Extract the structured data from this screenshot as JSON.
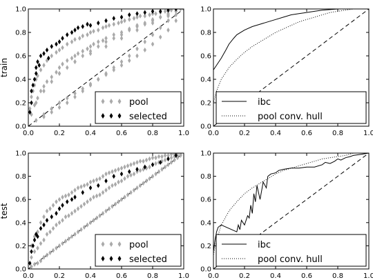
{
  "colors": {
    "pool": "#aaaaaa",
    "selected": "#000000",
    "line": "#000000"
  },
  "chart_data": [
    {
      "id": "train-scatter",
      "type": "scatter",
      "ylabel": "train",
      "xlim": [
        0,
        1
      ],
      "ylim": [
        0,
        1
      ],
      "xticks": [
        "0.0",
        "0.2",
        "0.4",
        "0.6",
        "0.8",
        "1.0"
      ],
      "yticks": [
        "0.0",
        "0.2",
        "0.4",
        "0.6",
        "0.8",
        "1.0"
      ],
      "grid": false,
      "legend": {
        "position": "bottom-right",
        "entries": [
          "pool",
          "selected"
        ]
      },
      "diagonal": true,
      "series": [
        {
          "name": "pool",
          "marker": "diamond",
          "color": "#aaaaaa",
          "x": [
            0.01,
            0.02,
            0.03,
            0.04,
            0.05,
            0.06,
            0.08,
            0.1,
            0.12,
            0.15,
            0.18,
            0.2,
            0.22,
            0.25,
            0.28,
            0.3,
            0.33,
            0.35,
            0.38,
            0.4,
            0.42,
            0.45,
            0.48,
            0.5,
            0.52,
            0.55,
            0.58,
            0.6,
            0.62,
            0.65,
            0.68,
            0.7,
            0.72,
            0.75,
            0.78,
            0.8,
            0.82,
            0.85,
            0.88,
            0.9,
            0.92,
            0.95,
            0.98,
            1.0,
            0.02,
            0.04,
            0.06,
            0.08,
            0.1,
            0.12,
            0.15,
            0.18,
            0.2,
            0.22,
            0.25,
            0.28,
            0.3,
            0.32,
            0.35,
            0.38,
            0.4,
            0.42,
            0.45,
            0.48,
            0.5,
            0.55,
            0.6,
            0.65,
            0.7,
            0.75,
            0.8,
            0.85,
            0.9,
            0.95,
            0.05,
            0.1,
            0.15,
            0.2,
            0.25,
            0.3,
            0.35,
            0.4,
            0.45,
            0.5,
            0.55,
            0.6,
            0.65,
            0.7,
            0.75,
            0.8,
            0.85,
            0.9,
            0.95,
            0.05,
            0.1,
            0.15,
            0.2,
            0.25,
            0.3,
            0.35,
            0.4,
            0.45,
            0.5,
            0.55,
            0.6,
            0.65,
            0.7,
            0.75,
            0.8,
            0.85,
            0.9,
            0.95,
            0.1,
            0.15,
            0.2,
            0.25,
            0.3,
            0.35,
            0.4,
            0.45,
            0.5,
            0.55,
            0.6,
            0.65,
            0.7,
            0.75,
            0.8,
            0.85,
            0.9,
            0.95,
            0.2,
            0.3,
            0.4,
            0.5,
            0.6,
            0.7,
            0.8,
            0.9
          ],
          "y": [
            0.15,
            0.25,
            0.3,
            0.35,
            0.4,
            0.43,
            0.48,
            0.52,
            0.56,
            0.6,
            0.63,
            0.65,
            0.67,
            0.7,
            0.72,
            0.74,
            0.75,
            0.77,
            0.78,
            0.8,
            0.81,
            0.82,
            0.84,
            0.85,
            0.86,
            0.87,
            0.88,
            0.89,
            0.9,
            0.91,
            0.92,
            0.93,
            0.94,
            0.94,
            0.95,
            0.96,
            0.96,
            0.97,
            0.98,
            0.98,
            0.99,
            0.99,
            1.0,
            1.0,
            0.1,
            0.18,
            0.24,
            0.3,
            0.34,
            0.38,
            0.42,
            0.46,
            0.5,
            0.53,
            0.56,
            0.58,
            0.6,
            0.62,
            0.64,
            0.66,
            0.68,
            0.7,
            0.72,
            0.73,
            0.75,
            0.78,
            0.8,
            0.83,
            0.86,
            0.88,
            0.91,
            0.93,
            0.96,
            0.98,
            0.2,
            0.3,
            0.38,
            0.45,
            0.5,
            0.55,
            0.6,
            0.64,
            0.68,
            0.72,
            0.75,
            0.78,
            0.82,
            0.85,
            0.87,
            0.9,
            0.93,
            0.95,
            0.98,
            0.05,
            0.1,
            0.15,
            0.2,
            0.24,
            0.28,
            0.32,
            0.36,
            0.4,
            0.44,
            0.48,
            0.52,
            0.56,
            0.6,
            0.65,
            0.7,
            0.76,
            0.82,
            0.9,
            0.08,
            0.12,
            0.16,
            0.2,
            0.25,
            0.3,
            0.35,
            0.4,
            0.45,
            0.5,
            0.55,
            0.6,
            0.66,
            0.72,
            0.78,
            0.84,
            0.9,
            0.95,
            0.45,
            0.55,
            0.62,
            0.68,
            0.75,
            0.82,
            0.88,
            0.94
          ]
        },
        {
          "name": "selected",
          "marker": "diamond",
          "color": "#000000",
          "x": [
            0.01,
            0.02,
            0.02,
            0.03,
            0.04,
            0.05,
            0.05,
            0.06,
            0.07,
            0.08,
            0.1,
            0.12,
            0.13,
            0.15,
            0.18,
            0.2,
            0.22,
            0.25,
            0.28,
            0.3,
            0.32,
            0.35,
            0.38,
            0.4,
            0.45,
            0.5,
            0.55,
            0.6,
            0.65,
            0.7,
            0.75,
            0.8,
            0.85,
            0.9,
            0.95
          ],
          "y": [
            0.12,
            0.2,
            0.3,
            0.35,
            0.4,
            0.45,
            0.5,
            0.55,
            0.52,
            0.6,
            0.62,
            0.65,
            0.58,
            0.68,
            0.7,
            0.72,
            0.75,
            0.78,
            0.8,
            0.82,
            0.84,
            0.85,
            0.87,
            0.86,
            0.88,
            0.9,
            0.92,
            0.93,
            0.95,
            0.96,
            0.97,
            0.98,
            0.98,
            0.99,
            1.0
          ]
        }
      ]
    },
    {
      "id": "train-roc",
      "type": "line",
      "xlim": [
        0,
        1
      ],
      "ylim": [
        0,
        1
      ],
      "xticks": [
        "0.0",
        "0.2",
        "0.4",
        "0.6",
        "0.8",
        "1.0"
      ],
      "yticks": [
        "0.0",
        "0.2",
        "0.4",
        "0.6",
        "0.8",
        "1.0"
      ],
      "grid": false,
      "legend": {
        "position": "bottom-right",
        "entries": [
          "ibc",
          "pool conv. hull"
        ]
      },
      "diagonal": true,
      "series": [
        {
          "name": "ibc",
          "style": "solid",
          "x": [
            0,
            0.0,
            0.02,
            0.05,
            0.08,
            0.1,
            0.13,
            0.15,
            0.2,
            0.25,
            0.3,
            0.35,
            0.4,
            0.45,
            0.5,
            0.55,
            0.6,
            0.65,
            0.7,
            0.8,
            0.9,
            1.0
          ],
          "y": [
            0,
            0.48,
            0.52,
            0.58,
            0.65,
            0.7,
            0.75,
            0.78,
            0.82,
            0.85,
            0.87,
            0.89,
            0.91,
            0.93,
            0.95,
            0.96,
            0.97,
            0.98,
            0.99,
            1.0,
            1.0,
            1.0
          ]
        },
        {
          "name": "pool conv. hull",
          "style": "dotted",
          "x": [
            0,
            0.0,
            0.02,
            0.05,
            0.1,
            0.15,
            0.2,
            0.25,
            0.3,
            0.35,
            0.4,
            0.45,
            0.5,
            0.55,
            0.6,
            0.65,
            0.7,
            0.75,
            0.8,
            0.85,
            0.9,
            1.0
          ],
          "y": [
            0,
            0.2,
            0.3,
            0.4,
            0.5,
            0.57,
            0.63,
            0.68,
            0.72,
            0.76,
            0.8,
            0.83,
            0.86,
            0.89,
            0.91,
            0.93,
            0.95,
            0.97,
            0.98,
            0.99,
            1.0,
            1.0
          ]
        }
      ]
    },
    {
      "id": "test-scatter",
      "type": "scatter",
      "ylabel": "test",
      "xlim": [
        0,
        1
      ],
      "ylim": [
        0,
        1
      ],
      "xticks": [
        "0.0",
        "0.2",
        "0.4",
        "0.6",
        "0.8",
        "1.0"
      ],
      "yticks": [
        "0.0",
        "0.2",
        "0.4",
        "0.6",
        "0.8",
        "1.0"
      ],
      "grid": false,
      "legend": {
        "position": "bottom-right",
        "entries": [
          "pool",
          "selected"
        ]
      },
      "diagonal": true,
      "series": [
        {
          "name": "pool",
          "marker": "diamond",
          "color": "#aaaaaa",
          "x": [
            0.02,
            0.02,
            0.02,
            0.04,
            0.04,
            0.04,
            0.06,
            0.06,
            0.06,
            0.08,
            0.08,
            0.08,
            0.1,
            0.1,
            0.1,
            0.12,
            0.12,
            0.12,
            0.14,
            0.14,
            0.14,
            0.16,
            0.16,
            0.16,
            0.18,
            0.18,
            0.18,
            0.2,
            0.2,
            0.2,
            0.22,
            0.22,
            0.22,
            0.24,
            0.24,
            0.24,
            0.26,
            0.26,
            0.26,
            0.28,
            0.28,
            0.28,
            0.3,
            0.3,
            0.3,
            0.32,
            0.32,
            0.32,
            0.34,
            0.34,
            0.34,
            0.36,
            0.36,
            0.36,
            0.38,
            0.38,
            0.38,
            0.4,
            0.4,
            0.4,
            0.42,
            0.42,
            0.42,
            0.44,
            0.44,
            0.44,
            0.46,
            0.46,
            0.46,
            0.48,
            0.48,
            0.48,
            0.5,
            0.5,
            0.5,
            0.52,
            0.52,
            0.52,
            0.54,
            0.54,
            0.54,
            0.56,
            0.56,
            0.56,
            0.58,
            0.58,
            0.58,
            0.6,
            0.6,
            0.6,
            0.62,
            0.62,
            0.62,
            0.64,
            0.64,
            0.64,
            0.66,
            0.66,
            0.66,
            0.68,
            0.68,
            0.68,
            0.7,
            0.7,
            0.7,
            0.72,
            0.72,
            0.72,
            0.74,
            0.74,
            0.74,
            0.76,
            0.76,
            0.76,
            0.78,
            0.78,
            0.78,
            0.8,
            0.8,
            0.8,
            0.82,
            0.82,
            0.82,
            0.84,
            0.84,
            0.84,
            0.86,
            0.86,
            0.86,
            0.88,
            0.88,
            0.88,
            0.9,
            0.9,
            0.9,
            0.92,
            0.92,
            0.92,
            0.94,
            0.94,
            0.94,
            0.96,
            0.96,
            0.96,
            0.98,
            0.98,
            0.98
          ],
          "y": [
            0.02,
            0.1,
            0.2,
            0.04,
            0.15,
            0.28,
            0.05,
            0.18,
            0.32,
            0.07,
            0.22,
            0.4,
            0.1,
            0.25,
            0.45,
            0.12,
            0.3,
            0.5,
            0.14,
            0.32,
            0.52,
            0.16,
            0.35,
            0.55,
            0.18,
            0.38,
            0.58,
            0.2,
            0.4,
            0.6,
            0.22,
            0.42,
            0.62,
            0.24,
            0.45,
            0.63,
            0.26,
            0.46,
            0.64,
            0.28,
            0.48,
            0.66,
            0.3,
            0.5,
            0.68,
            0.32,
            0.52,
            0.7,
            0.34,
            0.54,
            0.71,
            0.36,
            0.56,
            0.72,
            0.38,
            0.58,
            0.73,
            0.4,
            0.6,
            0.75,
            0.42,
            0.62,
            0.76,
            0.44,
            0.63,
            0.77,
            0.46,
            0.64,
            0.78,
            0.48,
            0.66,
            0.8,
            0.5,
            0.68,
            0.82,
            0.52,
            0.7,
            0.83,
            0.54,
            0.72,
            0.84,
            0.56,
            0.73,
            0.85,
            0.58,
            0.75,
            0.86,
            0.6,
            0.76,
            0.87,
            0.62,
            0.78,
            0.88,
            0.64,
            0.8,
            0.89,
            0.66,
            0.81,
            0.9,
            0.68,
            0.82,
            0.91,
            0.7,
            0.84,
            0.92,
            0.72,
            0.85,
            0.93,
            0.74,
            0.86,
            0.93,
            0.76,
            0.87,
            0.94,
            0.78,
            0.88,
            0.95,
            0.8,
            0.9,
            0.96,
            0.82,
            0.91,
            0.96,
            0.84,
            0.92,
            0.97,
            0.86,
            0.93,
            0.97,
            0.88,
            0.94,
            0.98,
            0.9,
            0.95,
            0.98,
            0.92,
            0.96,
            0.99,
            0.94,
            0.97,
            0.99,
            0.96,
            0.98,
            1.0,
            0.98,
            0.99,
            1.0
          ]
        },
        {
          "name": "selected",
          "marker": "diamond",
          "color": "#000000",
          "x": [
            0.01,
            0.02,
            0.03,
            0.04,
            0.05,
            0.06,
            0.08,
            0.1,
            0.12,
            0.15,
            0.18,
            0.2,
            0.22,
            0.25,
            0.28,
            0.3,
            0.35,
            0.4,
            0.45,
            0.5,
            0.55,
            0.6,
            0.65,
            0.7,
            0.75,
            0.8,
            0.85,
            0.9,
            0.95
          ],
          "y": [
            0.05,
            0.15,
            0.2,
            0.25,
            0.3,
            0.28,
            0.35,
            0.38,
            0.42,
            0.45,
            0.48,
            0.52,
            0.55,
            0.58,
            0.6,
            0.62,
            0.66,
            0.7,
            0.72,
            0.76,
            0.8,
            0.82,
            0.84,
            0.86,
            0.88,
            0.9,
            0.92,
            0.95,
            0.98
          ]
        }
      ]
    },
    {
      "id": "test-roc",
      "type": "line",
      "xlim": [
        0,
        1
      ],
      "ylim": [
        0,
        1
      ],
      "xticks": [
        "0.0",
        "0.2",
        "0.4",
        "0.6",
        "0.8",
        "1.0"
      ],
      "yticks": [
        "0.0",
        "0.2",
        "0.4",
        "0.6",
        "0.8",
        "1.0"
      ],
      "grid": false,
      "legend": {
        "position": "bottom-right",
        "entries": [
          "ibc",
          "pool conv. hull"
        ]
      },
      "diagonal": true,
      "series": [
        {
          "name": "ibc",
          "style": "solid",
          "x": [
            0,
            0.0,
            0.01,
            0.02,
            0.03,
            0.05,
            0.1,
            0.15,
            0.16,
            0.17,
            0.18,
            0.2,
            0.22,
            0.23,
            0.24,
            0.25,
            0.26,
            0.27,
            0.28,
            0.3,
            0.32,
            0.34,
            0.35,
            0.37,
            0.4,
            0.42,
            0.45,
            0.5,
            0.55,
            0.6,
            0.65,
            0.7,
            0.72,
            0.75,
            0.78,
            0.8,
            0.82,
            0.85,
            0.88,
            0.9,
            0.95,
            1.0
          ],
          "y": [
            0,
            0.15,
            0.25,
            0.32,
            0.36,
            0.38,
            0.35,
            0.32,
            0.38,
            0.34,
            0.42,
            0.38,
            0.46,
            0.44,
            0.55,
            0.48,
            0.65,
            0.58,
            0.72,
            0.6,
            0.75,
            0.7,
            0.8,
            0.82,
            0.83,
            0.85,
            0.86,
            0.87,
            0.87,
            0.88,
            0.88,
            0.9,
            0.92,
            0.91,
            0.93,
            0.95,
            0.94,
            0.96,
            0.97,
            0.98,
            0.99,
            1.0
          ]
        },
        {
          "name": "pool conv. hull",
          "style": "dotted",
          "x": [
            0,
            0.0,
            0.02,
            0.05,
            0.1,
            0.15,
            0.2,
            0.25,
            0.3,
            0.35,
            0.4,
            0.45,
            0.5,
            0.55,
            0.6,
            0.65,
            0.7,
            0.75,
            0.8,
            0.85,
            0.9,
            1.0
          ],
          "y": [
            0,
            0.12,
            0.25,
            0.38,
            0.5,
            0.58,
            0.65,
            0.7,
            0.74,
            0.78,
            0.82,
            0.85,
            0.87,
            0.89,
            0.91,
            0.93,
            0.95,
            0.96,
            0.97,
            0.98,
            1.0,
            1.0
          ]
        }
      ]
    }
  ]
}
